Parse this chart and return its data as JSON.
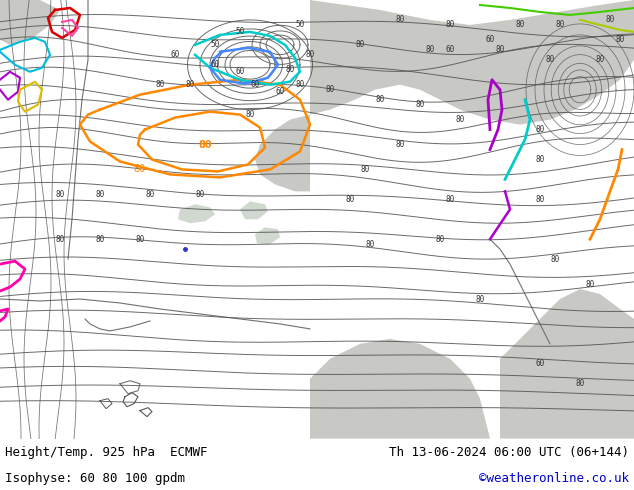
{
  "title_left": "Height/Temp. 925 hPa  ECMWF",
  "title_right": "Th 13-06-2024 06:00 UTC (06+144)",
  "subtitle_left": "Isophyse: 60 80 100 gpdm",
  "subtitle_right": "©weatheronline.co.uk",
  "subtitle_right_color": "#0000cc",
  "land_color": "#b8dda8",
  "gray_color": "#c8c8c4",
  "light_green": "#cce8bc",
  "bottom_bar_color": "#ffffff",
  "text_color": "#000000",
  "fig_width": 6.34,
  "fig_height": 4.9,
  "dpi": 100,
  "bottom_bar_height": 0.105,
  "contour_color": "#505050",
  "orange_color": "#ff8800",
  "cyan_color": "#00aadd",
  "purple_color": "#aa00cc",
  "magenta_color": "#ff00aa",
  "red_color": "#dd0000",
  "green_line_color": "#44cc00",
  "yellow_color": "#dddd00",
  "blue_color": "#4488ff",
  "teal_color": "#00ccaa"
}
